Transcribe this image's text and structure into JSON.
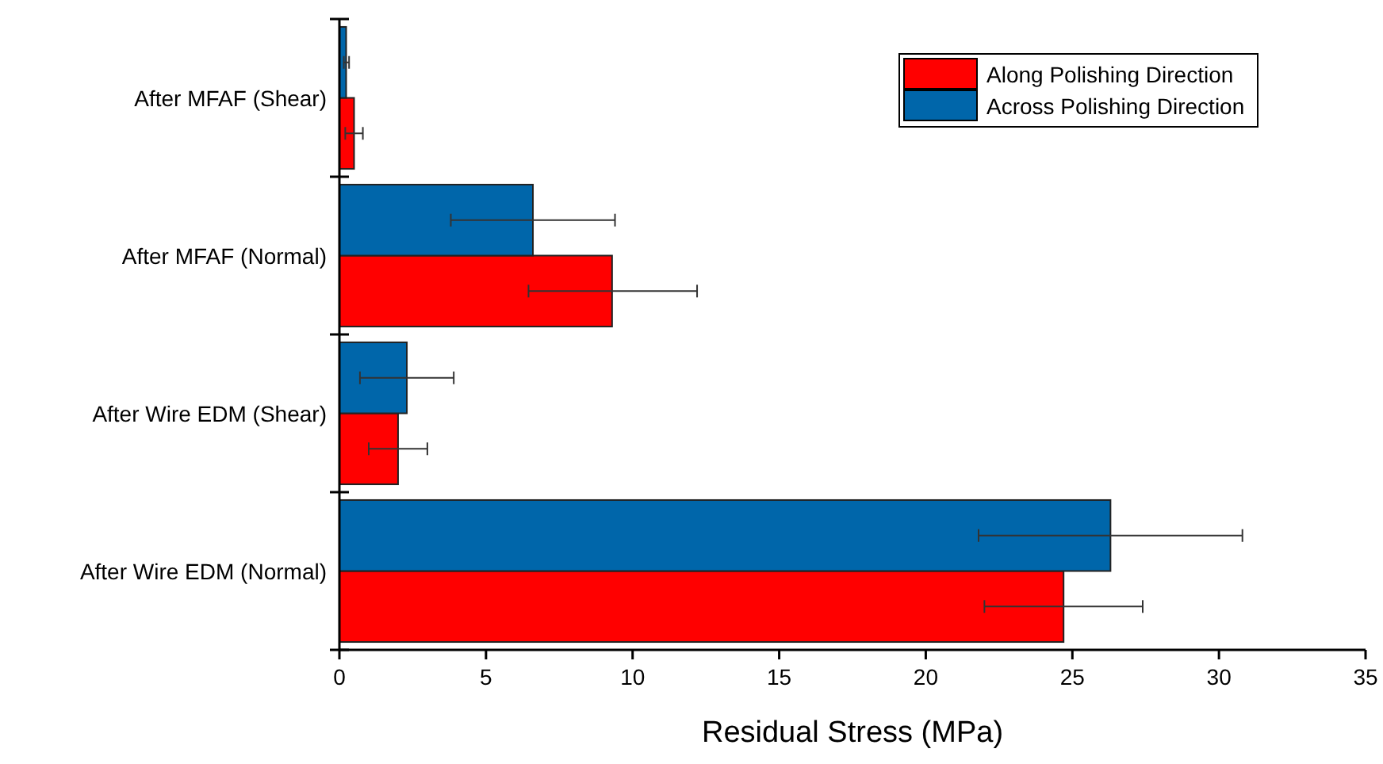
{
  "chart_data": {
    "type": "bar",
    "orientation": "horizontal",
    "xlabel": "Residual Stress (MPa)",
    "categories": [
      "After MFAF (Shear)",
      "After MFAF (Normal)",
      "After Wire EDM (Shear)",
      "After Wire EDM (Normal)"
    ],
    "series": [
      {
        "name": "Along Polishing Direction",
        "color": "#ff0000",
        "values": [
          0.5,
          9.3,
          2.0,
          24.7
        ],
        "errors": [
          [
            0.2,
            0.8
          ],
          [
            6.45,
            12.2
          ],
          [
            1.0,
            3.0
          ],
          [
            22.0,
            27.4
          ]
        ]
      },
      {
        "name": "Across Polishing Direction",
        "color": "#0066aa",
        "values": [
          0.23,
          6.6,
          2.3,
          26.3
        ],
        "errors": [
          [
            0.15,
            0.33
          ],
          [
            3.8,
            9.4
          ],
          [
            0.7,
            3.9
          ],
          [
            21.8,
            30.8
          ]
        ]
      }
    ],
    "xlim": [
      0,
      35
    ],
    "xticks": [
      0,
      5,
      10,
      15,
      20,
      25,
      30,
      35
    ],
    "grid": false,
    "legend": "top right"
  }
}
